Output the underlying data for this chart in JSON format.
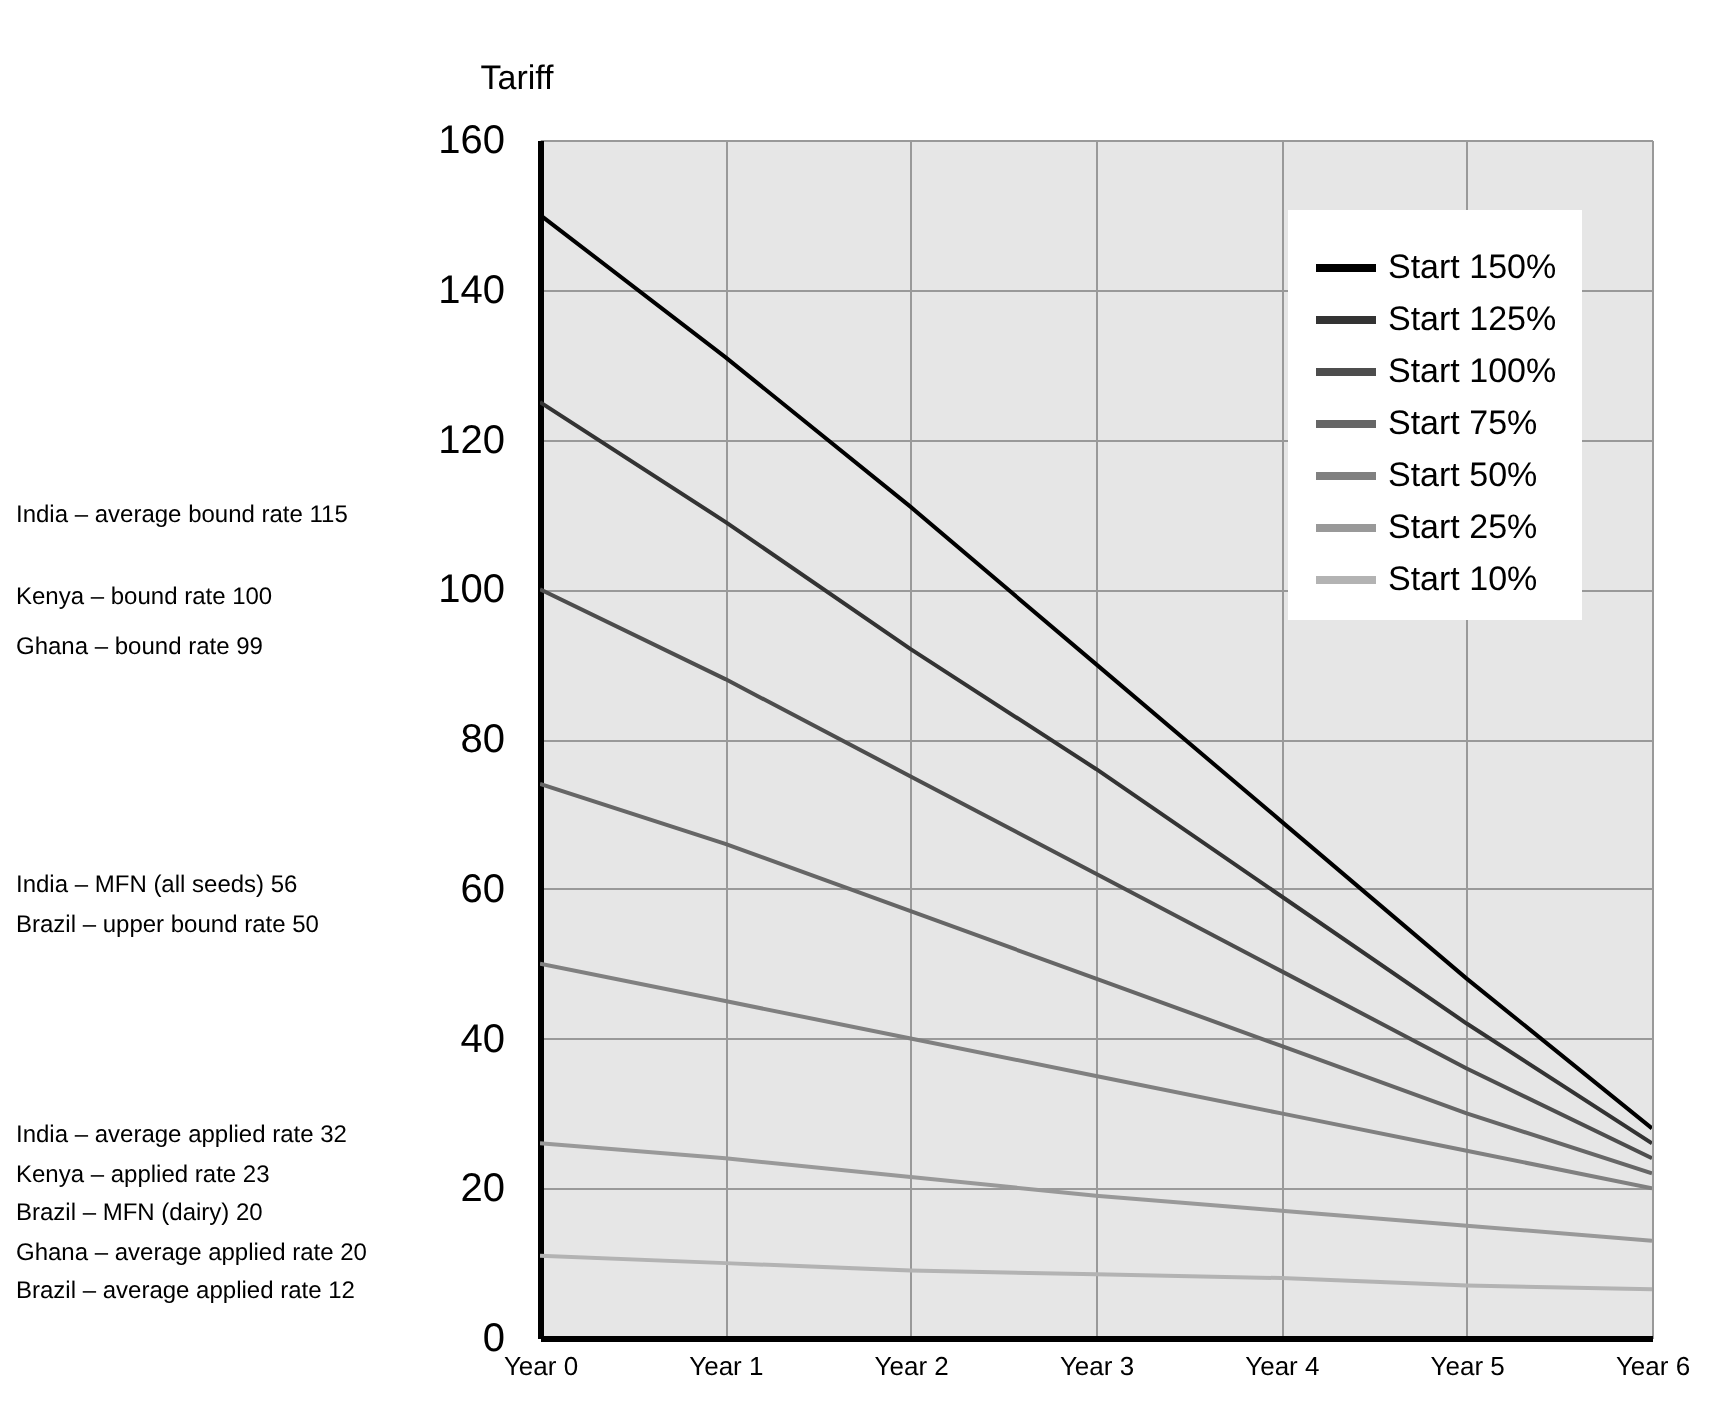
{
  "chart_data": {
    "type": "line",
    "ylabel": "Tariff",
    "categories": [
      "Year 0",
      "Year 1",
      "Year 2",
      "Year 3",
      "Year 4",
      "Year 5",
      "Year 6"
    ],
    "series": [
      {
        "name": "Start 150%",
        "color": "#000000",
        "values": [
          150,
          131,
          111,
          90,
          69,
          48,
          28
        ]
      },
      {
        "name": "Start 125%",
        "color": "#333333",
        "values": [
          125,
          109,
          92,
          76,
          59,
          42,
          26
        ]
      },
      {
        "name": "Start 100%",
        "color": "#4d4d4d",
        "values": [
          100,
          88,
          75,
          62,
          49,
          36,
          24
        ]
      },
      {
        "name": "Start 75%",
        "color": "#666666",
        "values": [
          74,
          66,
          57,
          48,
          39,
          30,
          22
        ]
      },
      {
        "name": "Start 50%",
        "color": "#808080",
        "values": [
          50,
          45,
          40,
          35,
          30,
          25,
          20
        ]
      },
      {
        "name": "Start 25%",
        "color": "#999999",
        "values": [
          26,
          24,
          21.5,
          19,
          17,
          15,
          13
        ]
      },
      {
        "name": "Start 10%",
        "color": "#b3b3b3",
        "values": [
          11,
          10,
          9,
          8.5,
          8,
          7,
          6.5
        ]
      }
    ],
    "ylim": [
      0,
      160
    ],
    "yticks": [
      0,
      20,
      40,
      60,
      80,
      100,
      120,
      140,
      160
    ],
    "grid": true,
    "legend": "top right",
    "marker": "none",
    "line_style": "solid",
    "annotations": [
      "India – average bound rate 115",
      "Kenya – bound rate 100",
      "Ghana – bound rate 99",
      "India – MFN (all seeds) 56",
      "Brazil – upper bound rate 50",
      "India – average applied rate 32",
      "Kenya – applied rate 23",
      "Brazil – MFN (dairy) 20",
      "Ghana – average applied rate 20",
      "Brazil – average applied rate 12"
    ]
  }
}
